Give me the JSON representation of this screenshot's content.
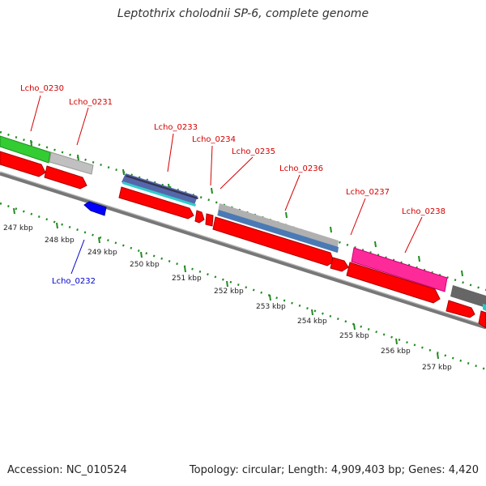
{
  "title": "Leptothrix cholodnii SP-6, complete genome",
  "footer": {
    "accession": "Accession: NC_010524",
    "summary": "Topology: circular; Length: 4,909,403 bp; Genes: 4,420"
  },
  "gene_labels": [
    {
      "name": "Lcho_0230",
      "color": "#d40000"
    },
    {
      "name": "Lcho_0231",
      "color": "#d40000"
    },
    {
      "name": "Lcho_0233",
      "color": "#d40000"
    },
    {
      "name": "Lcho_0234",
      "color": "#d40000"
    },
    {
      "name": "Lcho_0235",
      "color": "#d40000"
    },
    {
      "name": "Lcho_0236",
      "color": "#d40000"
    },
    {
      "name": "Lcho_0237",
      "color": "#d40000"
    },
    {
      "name": "Lcho_0238",
      "color": "#d40000"
    },
    {
      "name": "Lcho_0232",
      "color": "#0000cc"
    }
  ],
  "ticks": [
    "247 kbp",
    "248 kbp",
    "249 kbp",
    "250 kbp",
    "251 kbp",
    "252 kbp",
    "253 kbp",
    "254 kbp",
    "255 kbp",
    "256 kbp",
    "257 kbp"
  ],
  "colors": {
    "forward_cds": "#ff0000",
    "reverse_cds": "#0000ff",
    "backbone": "#888888",
    "dots": "#228b22"
  }
}
